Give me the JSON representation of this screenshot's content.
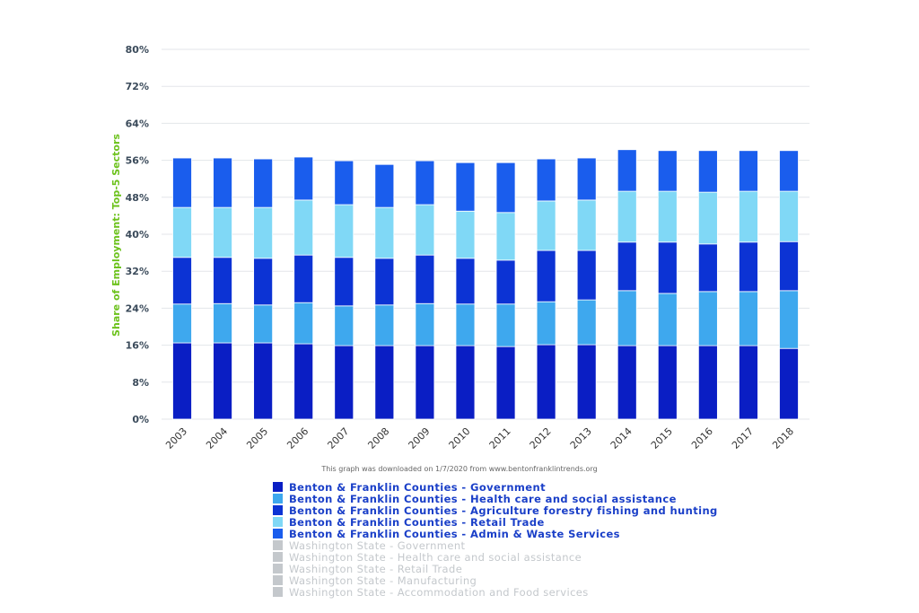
{
  "chart_data": {
    "type": "bar",
    "stacked": true,
    "title": "",
    "xlabel": "",
    "ylabel": "Share of Employment: Top-5 Sectors",
    "ylim": [
      0,
      80
    ],
    "yticks": [
      "0%",
      "8%",
      "16%",
      "24%",
      "32%",
      "40%",
      "48%",
      "56%",
      "64%",
      "72%",
      "80%"
    ],
    "grid": true,
    "legend_position": "bottom",
    "categories": [
      "2003",
      "2004",
      "2005",
      "2006",
      "2007",
      "2008",
      "2009",
      "2010",
      "2011",
      "2012",
      "2013",
      "2014",
      "2015",
      "2016",
      "2017",
      "2018"
    ],
    "series": [
      {
        "name": "Benton & Franklin Counties - Government",
        "color": "#0a1ec4",
        "values": [
          16.5,
          16.5,
          16.5,
          16.3,
          15.9,
          15.9,
          15.9,
          15.9,
          15.7,
          16.1,
          16.1,
          15.9,
          15.9,
          15.9,
          15.9,
          15.3
        ]
      },
      {
        "name": "Benton & Franklin Counties - Health care and social assistance",
        "color": "#3ea8ee",
        "values": [
          8.4,
          8.5,
          8.2,
          8.9,
          8.6,
          8.8,
          9.1,
          9.0,
          9.2,
          9.3,
          9.7,
          11.9,
          11.3,
          11.7,
          11.7,
          12.5
        ]
      },
      {
        "name": "Benton & Franklin Counties - Agriculture forestry fishing and hunting",
        "color": "#0c33d4",
        "values": [
          10.1,
          10.0,
          10.1,
          10.3,
          10.5,
          10.1,
          10.5,
          9.9,
          9.5,
          11.1,
          10.7,
          10.5,
          11.1,
          10.3,
          10.7,
          10.6
        ]
      },
      {
        "name": "Benton & Franklin Counties - Retail Trade",
        "color": "#80d8f6",
        "values": [
          10.8,
          10.8,
          11.0,
          11.9,
          11.4,
          11.0,
          10.9,
          10.2,
          10.3,
          10.7,
          10.9,
          11.0,
          11.0,
          11.2,
          11.0,
          10.9
        ]
      },
      {
        "name": "Benton & Franklin Counties - Admin & Waste Services",
        "color": "#1a5ded",
        "values": [
          10.7,
          10.7,
          10.5,
          9.3,
          9.5,
          9.3,
          9.5,
          10.5,
          10.8,
          9.1,
          9.1,
          9.0,
          8.8,
          9.0,
          8.8,
          8.8
        ]
      }
    ],
    "hidden_series": [
      {
        "name": "Washington State - Government",
        "color": "#c4c8cc"
      },
      {
        "name": "Washington State - Health care and social assistance",
        "color": "#c4c8cc"
      },
      {
        "name": "Washington State - Retail Trade",
        "color": "#c4c8cc"
      },
      {
        "name": "Washington State - Manufacturing",
        "color": "#c4c8cc"
      },
      {
        "name": "Washington State - Accommodation and Food services",
        "color": "#c4c8cc"
      }
    ],
    "note": "This graph was downloaded on 1/7/2020 from www.bentonfranklintrends.org"
  }
}
